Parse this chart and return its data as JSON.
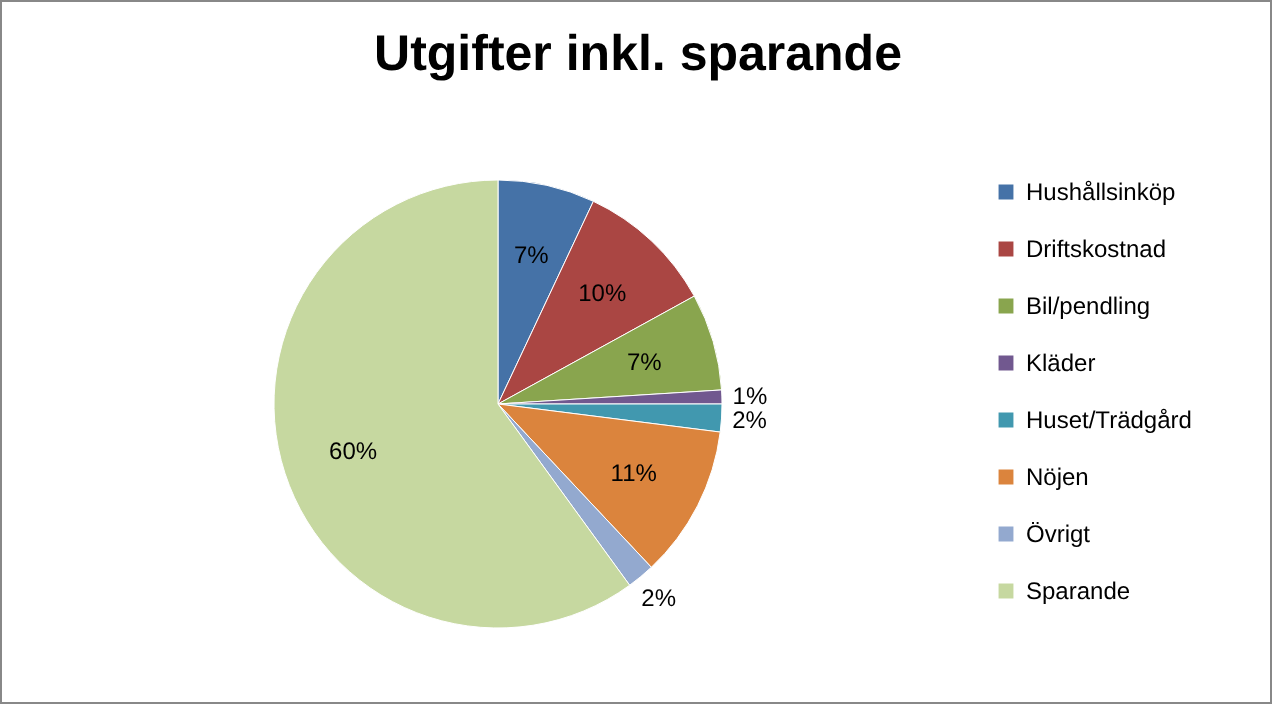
{
  "chart_data": {
    "type": "pie",
    "title": "Utgifter inkl. sparande",
    "categories": [
      "Hushållsinköp",
      "Driftskostnad",
      "Bil/pendling",
      "Kläder",
      "Huset/Trädgård",
      "Nöjen",
      "Övrigt",
      "Sparande"
    ],
    "values": [
      7,
      10,
      7,
      1,
      2,
      11,
      2,
      60
    ],
    "colors": [
      "#4572a7",
      "#aa4643",
      "#89a54e",
      "#71588f",
      "#4198af",
      "#db843d",
      "#93a9cf",
      "#c6d8a0"
    ],
    "value_labels": [
      "7%",
      "10%",
      "7%",
      "1%",
      "2%",
      "11%",
      "2%",
      "60%"
    ],
    "legend": "right"
  }
}
